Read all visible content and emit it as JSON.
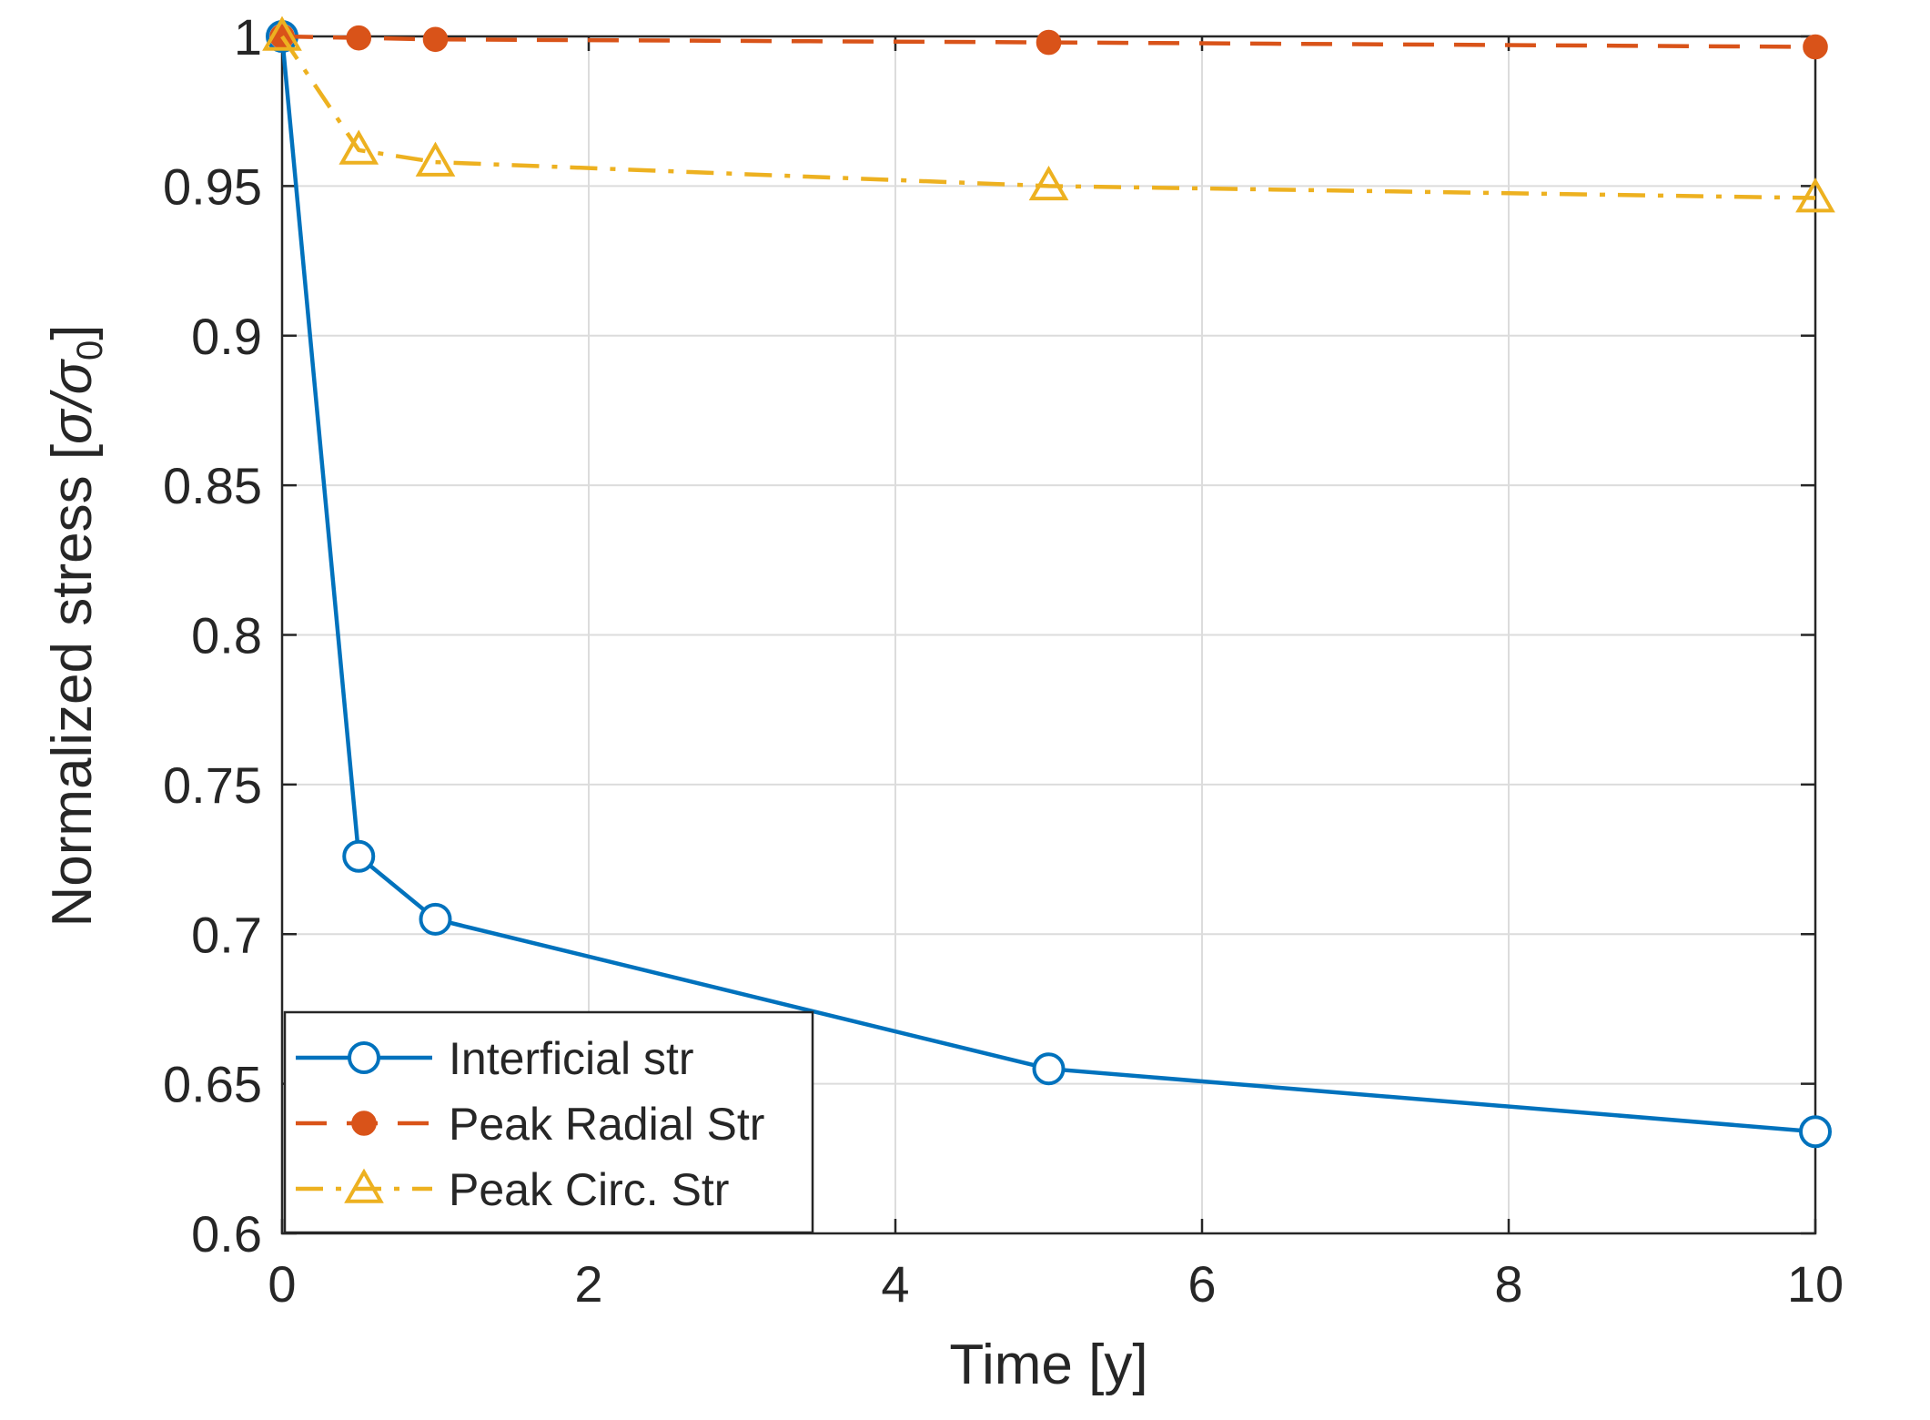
{
  "chart_data": {
    "type": "line",
    "title": "",
    "xlabel": "Time [y]",
    "ylabel": "Normalized stress [",
    "ylabel_symbol": "σ/σ",
    "ylabel_subscript": "0",
    "ylabel_close": "]",
    "xlim": [
      0,
      10
    ],
    "ylim": [
      0.6,
      1
    ],
    "grid": true,
    "xticks": [
      0,
      2,
      4,
      6,
      8,
      10
    ],
    "xtick_labels": [
      "0",
      "2",
      "4",
      "6",
      "8",
      "10"
    ],
    "yticks": [
      0.6,
      0.65,
      0.7,
      0.75,
      0.8,
      0.85,
      0.9,
      0.95,
      1
    ],
    "ytick_labels": [
      "0.6",
      "0.65",
      "0.7",
      "0.75",
      "0.8",
      "0.85",
      "0.9",
      "0.95",
      "1"
    ],
    "legend_position": "bottom-left",
    "series": [
      {
        "name": "Interficial str",
        "color": "#0072BD",
        "line_style": "solid",
        "marker": "circle",
        "x": [
          0,
          0.5,
          1,
          5,
          10
        ],
        "y": [
          1.0,
          0.726,
          0.705,
          0.655,
          0.634
        ]
      },
      {
        "name": "Peak Radial Str",
        "color": "#D95319",
        "line_style": "dashed",
        "marker": "filled-circle",
        "x": [
          0,
          0.5,
          1,
          5,
          10
        ],
        "y": [
          1.0,
          0.9995,
          0.999,
          0.998,
          0.9965
        ]
      },
      {
        "name": "Peak Circ. Str",
        "color": "#EDB120",
        "line_style": "dashdot",
        "marker": "triangle",
        "x": [
          0,
          0.5,
          1,
          5,
          10
        ],
        "y": [
          1.0,
          0.962,
          0.958,
          0.95,
          0.946
        ]
      }
    ]
  }
}
